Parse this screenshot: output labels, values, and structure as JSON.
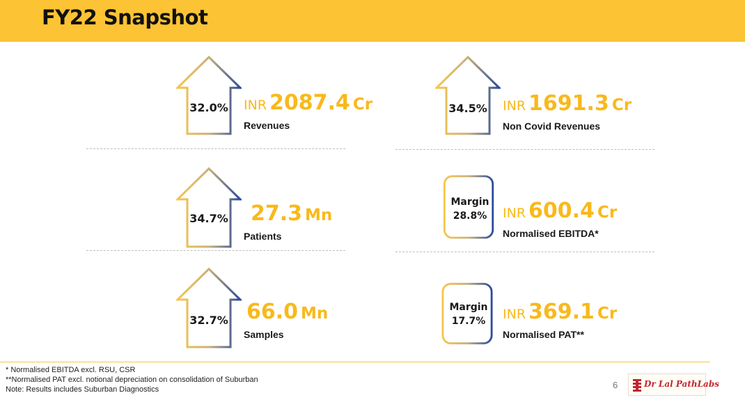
{
  "header": {
    "title": "FY22 Snapshot"
  },
  "metrics": [
    {
      "pct": "32.0%",
      "unit": "INR",
      "value": "2087.4",
      "suffix": "Cr",
      "label": "Revenues"
    },
    {
      "pct": "34.5%",
      "unit": "INR",
      "value": "1691.3",
      "suffix": "Cr",
      "label": "Non Covid Revenues"
    },
    {
      "pct": "34.7%",
      "unit": "",
      "value": "27.3",
      "suffix": "Mn",
      "label": "Patients"
    },
    {
      "margin_label": "Margin",
      "margin_value": "28.8%",
      "unit": "INR",
      "value": "600.4",
      "suffix": "Cr",
      "label": "Normalised EBITDA*"
    },
    {
      "pct": "32.7%",
      "unit": "",
      "value": "66.0",
      "suffix": "Mn",
      "label": "Samples"
    },
    {
      "margin_label": "Margin",
      "margin_value": "17.7%",
      "unit": "INR",
      "value": "369.1",
      "suffix": "Cr",
      "label": "Normalised PAT**"
    }
  ],
  "footnotes": [
    "* Normalised EBITDA excl. RSU, CSR",
    "**Normalised PAT excl. notional depreciation on consolidation of Suburban",
    "Note: Results includes Suburban Diagnostics"
  ],
  "page_number": "6",
  "logo": {
    "text": "Dr Lal PathLabs"
  },
  "colors": {
    "accent": "#FCC334",
    "value": "#F9B91B",
    "arrow_start": "#F7C54A",
    "arrow_end": "#2B4A9B"
  }
}
